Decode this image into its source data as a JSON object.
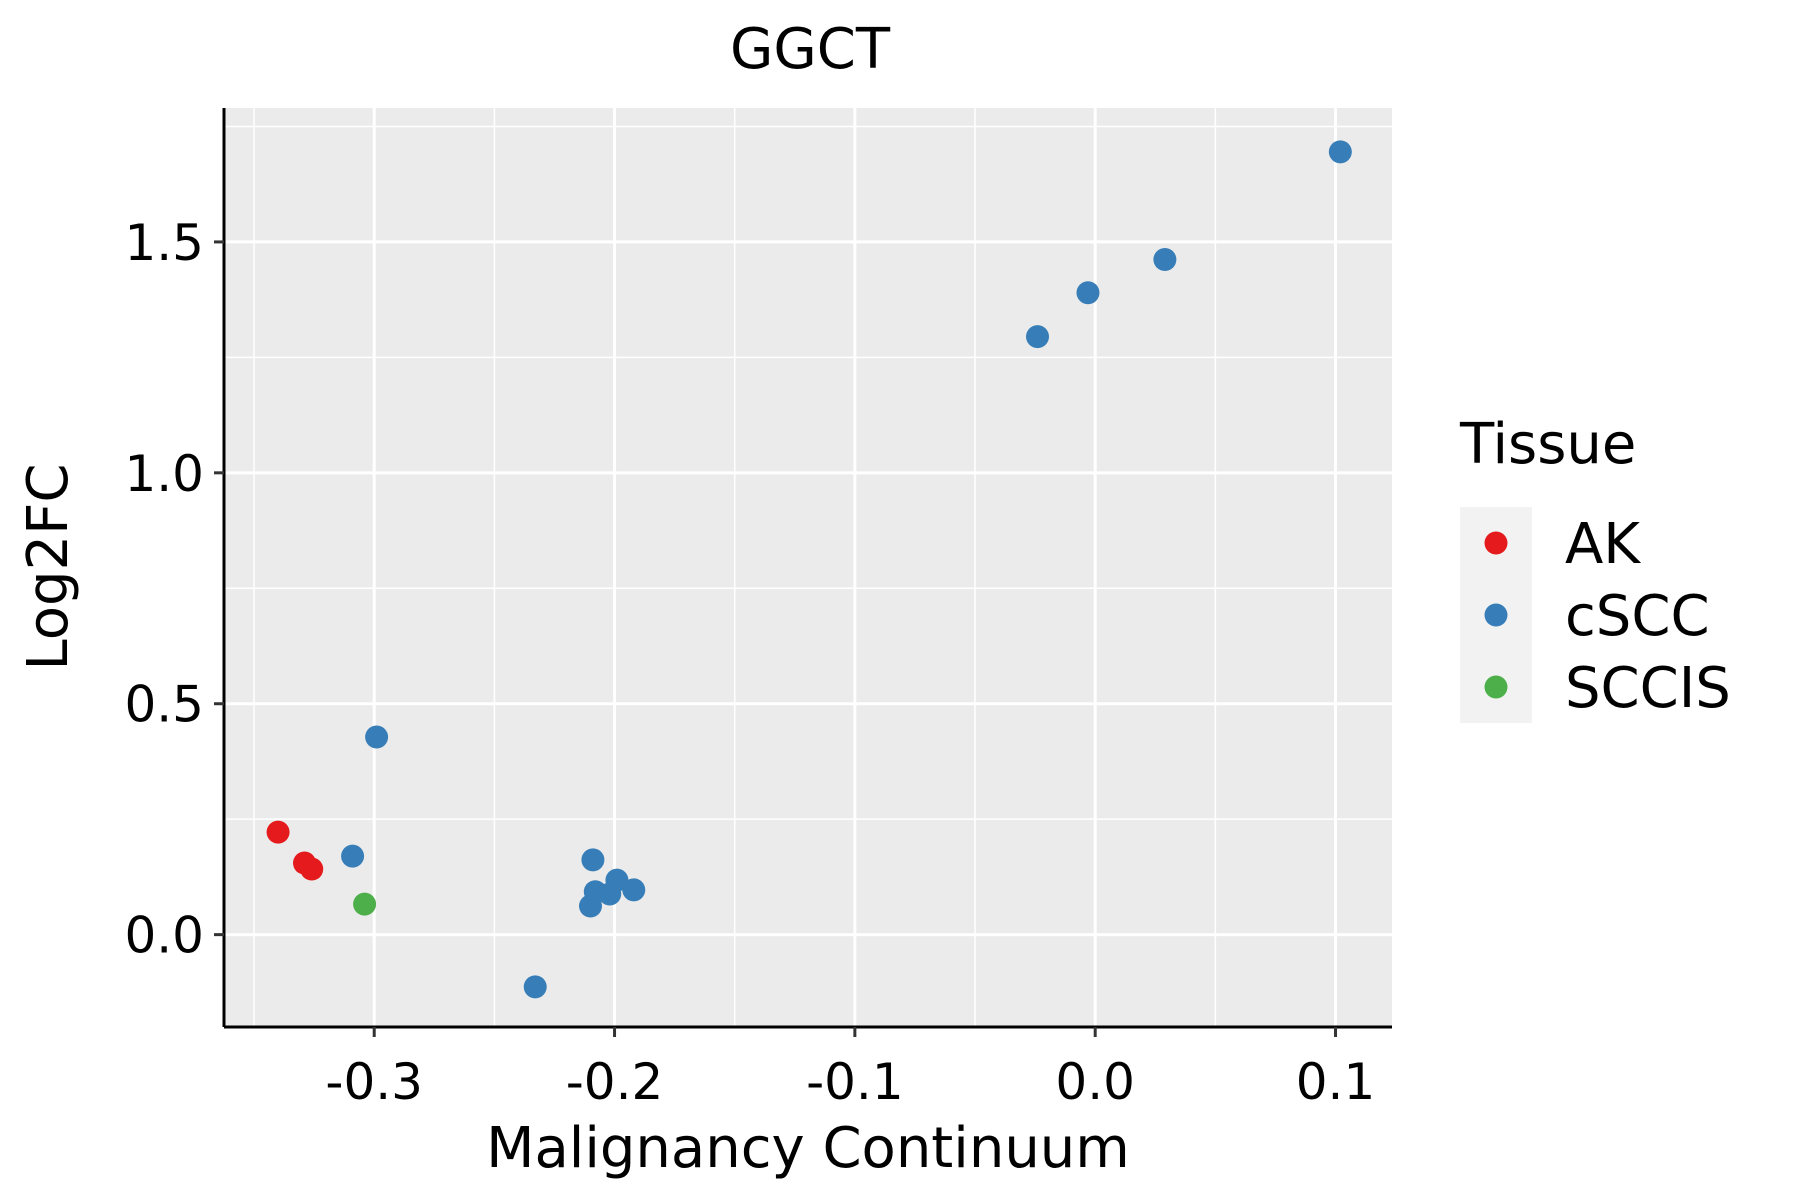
{
  "chart_data": {
    "type": "scatter",
    "title": "GGCT",
    "xlabel": "Malignancy Continuum",
    "ylabel": "Log2FC",
    "xlim": [
      -0.3625,
      0.1235
    ],
    "ylim": [
      -0.2,
      1.79
    ],
    "x_ticks": [
      -0.3,
      -0.2,
      -0.1,
      0.0,
      0.1
    ],
    "x_tick_labels": [
      "-0.3",
      "-0.2",
      "-0.1",
      "0.0",
      "0.1"
    ],
    "y_ticks": [
      0.0,
      0.5,
      1.0,
      1.5
    ],
    "y_tick_labels": [
      "0.0",
      "0.5",
      "1.0",
      "1.5"
    ],
    "grid": true,
    "legend": {
      "title": "Tissue",
      "placement": "right",
      "entries": [
        {
          "label": "AK",
          "color": "#E41A1C"
        },
        {
          "label": "cSCC",
          "color": "#377EB8"
        },
        {
          "label": "SCCIS",
          "color": "#4DAF4A"
        }
      ]
    },
    "series": [
      {
        "name": "AK",
        "color": "#E41A1C",
        "x": [
          -0.34,
          -0.329,
          -0.326
        ],
        "y": [
          0.222,
          0.155,
          0.142
        ]
      },
      {
        "name": "cSCC",
        "color": "#377EB8",
        "x": [
          0.102,
          0.029,
          -0.003,
          -0.024,
          -0.299,
          -0.309,
          -0.209,
          -0.199,
          -0.192,
          -0.208,
          -0.202,
          -0.21,
          -0.233
        ],
        "y": [
          1.695,
          1.462,
          1.39,
          1.295,
          0.428,
          0.17,
          0.162,
          0.118,
          0.097,
          0.093,
          0.088,
          0.062,
          -0.113
        ]
      },
      {
        "name": "SCCIS",
        "color": "#4DAF4A",
        "x": [
          -0.304
        ],
        "y": [
          0.066
        ]
      }
    ]
  }
}
